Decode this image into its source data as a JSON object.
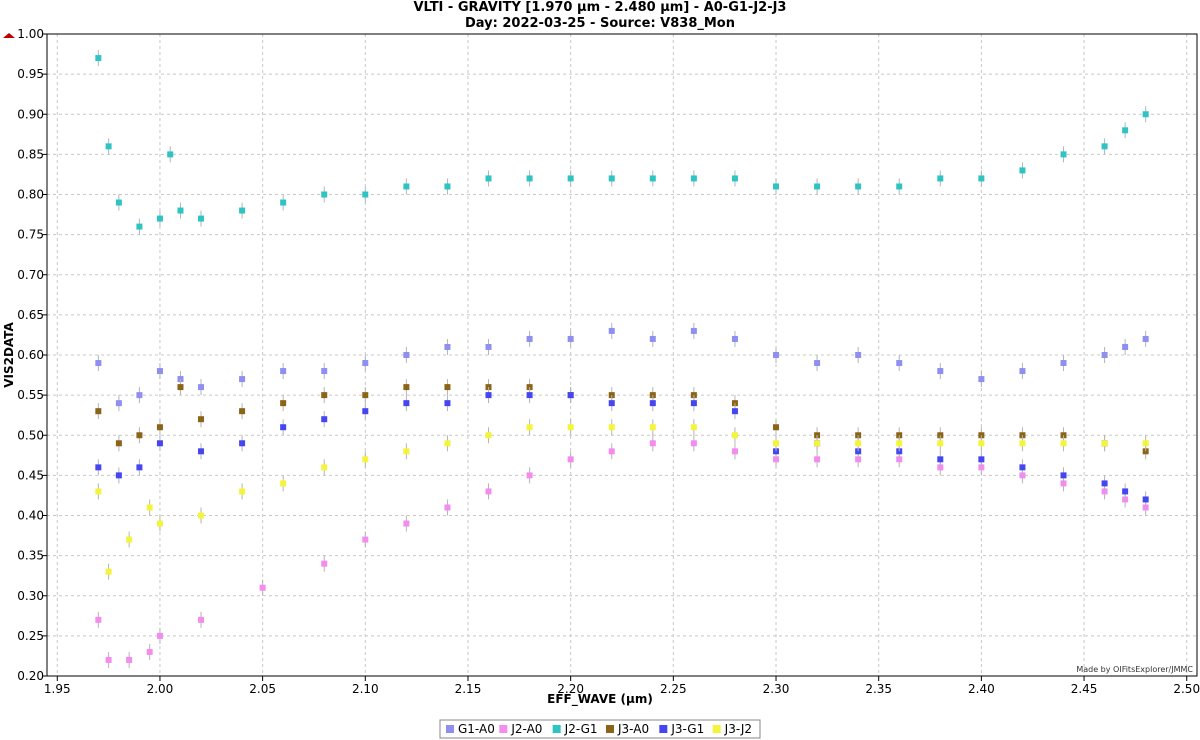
{
  "chart_data": {
    "type": "scatter",
    "title": "VLTI - GRAVITY [1.970 µm - 2.480 µm] - A0-G1-J2-J3",
    "subtitle": "Day: 2022-03-25 - Source: V838_Mon",
    "xlabel": "EFF_WAVE (µm)",
    "ylabel": "VIS2DATA",
    "xlim": [
      1.945,
      2.505
    ],
    "ylim": [
      0.2,
      1.0
    ],
    "x_ticks": [
      "1.95",
      "2.00",
      "2.05",
      "2.10",
      "2.15",
      "2.20",
      "2.25",
      "2.30",
      "2.35",
      "2.40",
      "2.45",
      "2.50"
    ],
    "y_ticks": [
      "0.20",
      "0.25",
      "0.30",
      "0.35",
      "0.40",
      "0.45",
      "0.50",
      "0.55",
      "0.60",
      "0.65",
      "0.70",
      "0.75",
      "0.80",
      "0.85",
      "0.90",
      "0.95",
      "1.00"
    ],
    "grid": true,
    "legend_position": "bottom",
    "credit": "Made by OIFitsExplorer/JMMC",
    "series": [
      {
        "name": "G1-A0",
        "color": "#8f8ff0",
        "points": [
          [
            1.97,
            0.59
          ],
          [
            1.98,
            0.54
          ],
          [
            1.99,
            0.55
          ],
          [
            2.0,
            0.58
          ],
          [
            2.01,
            0.57
          ],
          [
            2.02,
            0.56
          ],
          [
            2.04,
            0.57
          ],
          [
            2.06,
            0.58
          ],
          [
            2.08,
            0.58
          ],
          [
            2.1,
            0.59
          ],
          [
            2.12,
            0.6
          ],
          [
            2.14,
            0.61
          ],
          [
            2.16,
            0.61
          ],
          [
            2.18,
            0.62
          ],
          [
            2.2,
            0.62
          ],
          [
            2.22,
            0.63
          ],
          [
            2.24,
            0.62
          ],
          [
            2.26,
            0.63
          ],
          [
            2.28,
            0.62
          ],
          [
            2.3,
            0.6
          ],
          [
            2.32,
            0.59
          ],
          [
            2.34,
            0.6
          ],
          [
            2.36,
            0.59
          ],
          [
            2.38,
            0.58
          ],
          [
            2.4,
            0.57
          ],
          [
            2.42,
            0.58
          ],
          [
            2.44,
            0.59
          ],
          [
            2.46,
            0.6
          ],
          [
            2.47,
            0.61
          ],
          [
            2.48,
            0.62
          ]
        ]
      },
      {
        "name": "J2-A0",
        "color": "#f48cf0",
        "points": [
          [
            1.97,
            0.27
          ],
          [
            1.975,
            0.22
          ],
          [
            1.985,
            0.22
          ],
          [
            1.995,
            0.23
          ],
          [
            2.0,
            0.25
          ],
          [
            2.02,
            0.27
          ],
          [
            2.05,
            0.31
          ],
          [
            2.08,
            0.34
          ],
          [
            2.1,
            0.37
          ],
          [
            2.12,
            0.39
          ],
          [
            2.14,
            0.41
          ],
          [
            2.16,
            0.43
          ],
          [
            2.18,
            0.45
          ],
          [
            2.2,
            0.47
          ],
          [
            2.22,
            0.48
          ],
          [
            2.24,
            0.49
          ],
          [
            2.26,
            0.49
          ],
          [
            2.28,
            0.48
          ],
          [
            2.3,
            0.47
          ],
          [
            2.32,
            0.47
          ],
          [
            2.34,
            0.47
          ],
          [
            2.36,
            0.47
          ],
          [
            2.38,
            0.46
          ],
          [
            2.4,
            0.46
          ],
          [
            2.42,
            0.45
          ],
          [
            2.44,
            0.44
          ],
          [
            2.46,
            0.43
          ],
          [
            2.47,
            0.42
          ],
          [
            2.48,
            0.41
          ]
        ]
      },
      {
        "name": "J2-G1",
        "color": "#2ec4c4",
        "points": [
          [
            1.97,
            0.97
          ],
          [
            1.975,
            0.86
          ],
          [
            1.98,
            0.79
          ],
          [
            1.99,
            0.76
          ],
          [
            2.0,
            0.77
          ],
          [
            2.005,
            0.85
          ],
          [
            2.01,
            0.78
          ],
          [
            2.02,
            0.77
          ],
          [
            2.04,
            0.78
          ],
          [
            2.06,
            0.79
          ],
          [
            2.08,
            0.8
          ],
          [
            2.1,
            0.8
          ],
          [
            2.12,
            0.81
          ],
          [
            2.14,
            0.81
          ],
          [
            2.16,
            0.82
          ],
          [
            2.18,
            0.82
          ],
          [
            2.2,
            0.82
          ],
          [
            2.22,
            0.82
          ],
          [
            2.24,
            0.82
          ],
          [
            2.26,
            0.82
          ],
          [
            2.28,
            0.82
          ],
          [
            2.3,
            0.81
          ],
          [
            2.32,
            0.81
          ],
          [
            2.34,
            0.81
          ],
          [
            2.36,
            0.81
          ],
          [
            2.38,
            0.82
          ],
          [
            2.4,
            0.82
          ],
          [
            2.42,
            0.83
          ],
          [
            2.44,
            0.85
          ],
          [
            2.46,
            0.86
          ],
          [
            2.47,
            0.88
          ],
          [
            2.48,
            0.9
          ]
        ]
      },
      {
        "name": "J3-A0",
        "color": "#8b6418",
        "points": [
          [
            1.97,
            0.53
          ],
          [
            1.98,
            0.49
          ],
          [
            1.99,
            0.5
          ],
          [
            2.0,
            0.51
          ],
          [
            2.01,
            0.56
          ],
          [
            2.02,
            0.52
          ],
          [
            2.04,
            0.53
          ],
          [
            2.06,
            0.54
          ],
          [
            2.08,
            0.55
          ],
          [
            2.1,
            0.55
          ],
          [
            2.12,
            0.56
          ],
          [
            2.14,
            0.56
          ],
          [
            2.16,
            0.56
          ],
          [
            2.18,
            0.56
          ],
          [
            2.2,
            0.55
          ],
          [
            2.22,
            0.55
          ],
          [
            2.24,
            0.55
          ],
          [
            2.26,
            0.55
          ],
          [
            2.28,
            0.54
          ],
          [
            2.3,
            0.51
          ],
          [
            2.32,
            0.5
          ],
          [
            2.34,
            0.5
          ],
          [
            2.36,
            0.5
          ],
          [
            2.38,
            0.5
          ],
          [
            2.4,
            0.5
          ],
          [
            2.42,
            0.5
          ],
          [
            2.44,
            0.5
          ],
          [
            2.46,
            0.49
          ],
          [
            2.48,
            0.48
          ]
        ]
      },
      {
        "name": "J3-G1",
        "color": "#4646f0",
        "points": [
          [
            1.97,
            0.46
          ],
          [
            1.98,
            0.45
          ],
          [
            1.99,
            0.46
          ],
          [
            2.0,
            0.49
          ],
          [
            2.02,
            0.48
          ],
          [
            2.04,
            0.49
          ],
          [
            2.06,
            0.51
          ],
          [
            2.08,
            0.52
          ],
          [
            2.1,
            0.53
          ],
          [
            2.12,
            0.54
          ],
          [
            2.14,
            0.54
          ],
          [
            2.16,
            0.55
          ],
          [
            2.18,
            0.55
          ],
          [
            2.2,
            0.55
          ],
          [
            2.22,
            0.54
          ],
          [
            2.24,
            0.54
          ],
          [
            2.26,
            0.54
          ],
          [
            2.28,
            0.53
          ],
          [
            2.3,
            0.48
          ],
          [
            2.32,
            0.49
          ],
          [
            2.34,
            0.48
          ],
          [
            2.36,
            0.48
          ],
          [
            2.38,
            0.47
          ],
          [
            2.4,
            0.47
          ],
          [
            2.42,
            0.46
          ],
          [
            2.44,
            0.45
          ],
          [
            2.46,
            0.44
          ],
          [
            2.47,
            0.43
          ],
          [
            2.48,
            0.42
          ]
        ]
      },
      {
        "name": "J3-J2",
        "color": "#f4f43c",
        "points": [
          [
            1.97,
            0.43
          ],
          [
            1.975,
            0.33
          ],
          [
            1.985,
            0.37
          ],
          [
            1.995,
            0.41
          ],
          [
            2.0,
            0.39
          ],
          [
            2.02,
            0.4
          ],
          [
            2.04,
            0.43
          ],
          [
            2.06,
            0.44
          ],
          [
            2.08,
            0.46
          ],
          [
            2.1,
            0.47
          ],
          [
            2.12,
            0.48
          ],
          [
            2.14,
            0.49
          ],
          [
            2.16,
            0.5
          ],
          [
            2.18,
            0.51
          ],
          [
            2.2,
            0.51
          ],
          [
            2.22,
            0.51
          ],
          [
            2.24,
            0.51
          ],
          [
            2.26,
            0.51
          ],
          [
            2.28,
            0.5
          ],
          [
            2.3,
            0.49
          ],
          [
            2.32,
            0.49
          ],
          [
            2.34,
            0.49
          ],
          [
            2.36,
            0.49
          ],
          [
            2.38,
            0.49
          ],
          [
            2.4,
            0.49
          ],
          [
            2.42,
            0.49
          ],
          [
            2.44,
            0.49
          ],
          [
            2.46,
            0.49
          ],
          [
            2.48,
            0.49
          ]
        ]
      }
    ]
  }
}
